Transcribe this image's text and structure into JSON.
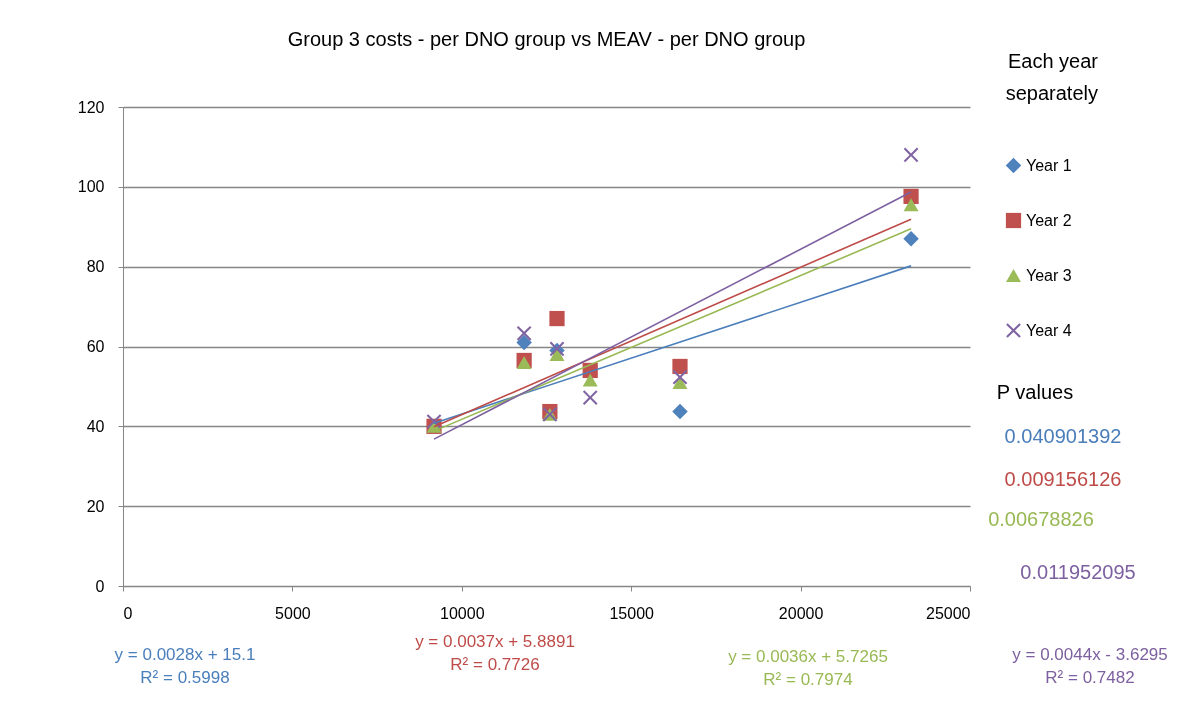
{
  "chart_data": {
    "type": "scatter",
    "title": "Group 3 costs - per DNO group vs MEAV - per DNO group",
    "legend_title": "Each year\nseparately",
    "legend": "right",
    "grid": "y",
    "xlim": [
      0,
      25000
    ],
    "xticks": [
      0,
      5000,
      10000,
      15000,
      20000,
      25000
    ],
    "ylim": [
      0,
      120
    ],
    "yticks": [
      0,
      20,
      40,
      60,
      80,
      100,
      120
    ],
    "series": [
      {
        "name": "Year 1",
        "color": "#4f81bd",
        "marker": "diamond",
        "x": [
          11840,
          12810,
          16440,
          23260
        ],
        "values": [
          61,
          59,
          43.7,
          87
        ]
      },
      {
        "name": "Year 2",
        "color": "#c0504d",
        "marker": "square",
        "x": [
          9180,
          11840,
          12600,
          12810,
          13790,
          16440,
          23260
        ],
        "values": [
          40,
          56.5,
          43.7,
          67,
          54,
          55,
          97.6
        ]
      },
      {
        "name": "Year 3",
        "color": "#9bbb59",
        "marker": "triangle",
        "x": [
          9180,
          11840,
          12600,
          12810,
          13790,
          16440,
          23260
        ],
        "values": [
          40,
          56,
          43,
          58,
          51.6,
          51,
          95.5
        ]
      },
      {
        "name": "Year 4",
        "color": "#8064a2",
        "marker": "cross",
        "x": [
          9180,
          11840,
          12600,
          12810,
          13790,
          16440,
          23260
        ],
        "values": [
          41.2,
          63.3,
          43,
          59.4,
          47.2,
          52.3,
          108
        ]
      },
      {
        "type": "line",
        "color": "#4a7ebb",
        "x": [
          9180,
          23260
        ],
        "values": [
          40.8,
          80.2
        ]
      },
      {
        "type": "line",
        "color": "#be4b48",
        "x": [
          9180,
          23260
        ],
        "values": [
          39.9,
          91.9
        ]
      },
      {
        "type": "line",
        "color": "#98b954",
        "x": [
          9180,
          23260
        ],
        "values": [
          38.8,
          89.5
        ]
      },
      {
        "type": "line",
        "color": "#7d60a0",
        "x": [
          9180,
          23260
        ],
        "values": [
          36.8,
          98.7
        ]
      }
    ],
    "annotations": [
      "y = 0.0028x + 15.1\nR² = 0.5998",
      "y = 0.0037x + 5.8891\nR² = 0.7726",
      "y = 0.0036x + 5.7265\nR² = 0.7974",
      "y = 0.0044x - 3.6295\nR² = 0.7482",
      "P values",
      "0.040901392",
      "0.009156126",
      "0.00678826",
      "0.011952095"
    ]
  }
}
